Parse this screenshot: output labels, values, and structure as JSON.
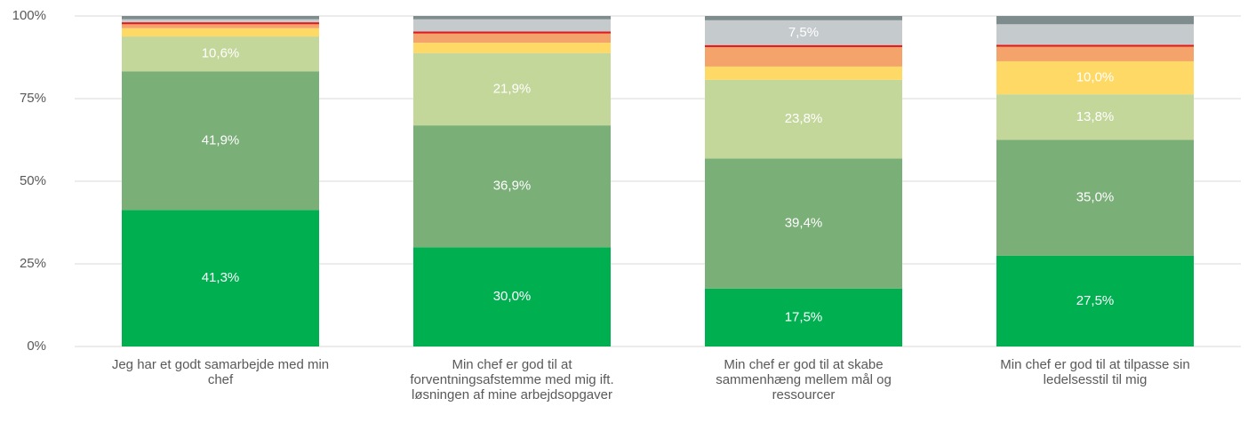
{
  "chart_data": {
    "type": "bar",
    "stacked": true,
    "categories": [
      "Jeg har et godt samarbejde med min chef",
      "Min chef er god til at forventningsafstemme med mig ift. løsningen af mine arbejdsopgaver",
      "Min chef er god til at skabe sammenhæng mellem mål og ressourcer",
      "Min chef er god til at tilpasse sin ledelsesstil til mig"
    ],
    "series": [
      {
        "color": "#00b050",
        "values": [
          41.3,
          30.0,
          17.5,
          27.5
        ],
        "value_labels": [
          "41,3%",
          "30,0%",
          "17,5%",
          "27,5%"
        ]
      },
      {
        "color": "#7aaf78",
        "values": [
          41.9,
          36.9,
          39.4,
          35.0
        ],
        "value_labels": [
          "41,9%",
          "36,9%",
          "39,4%",
          "35,0%"
        ]
      },
      {
        "color": "#c4d79b",
        "values": [
          10.6,
          21.9,
          23.8,
          13.8
        ],
        "value_labels": [
          "10,6%",
          "21,9%",
          "23,8%",
          "13,8%"
        ]
      },
      {
        "color": "#ffd966",
        "values": [
          2.5,
          3.1,
          4.0,
          10.0
        ],
        "value_labels": [
          null,
          null,
          null,
          "10,0%"
        ]
      },
      {
        "color": "#f4a46a",
        "values": [
          1.2,
          2.8,
          5.9,
          4.4
        ]
      },
      {
        "color": "#e31a1c",
        "values": [
          0.6,
          0.6,
          0.6,
          0.6
        ]
      },
      {
        "color": "#c5cbcd",
        "values": [
          0.9,
          3.7,
          7.5,
          6.2
        ],
        "value_labels": [
          null,
          null,
          "7,5%",
          null
        ]
      },
      {
        "color": "#7f8c8d",
        "values": [
          1.0,
          1.0,
          1.3,
          2.5
        ]
      }
    ],
    "ylim": [
      0,
      100
    ],
    "yticks": [
      {
        "value": 0,
        "label": "0%"
      },
      {
        "value": 25,
        "label": "25%"
      },
      {
        "value": 50,
        "label": "50%"
      },
      {
        "value": 75,
        "label": "75%"
      },
      {
        "value": 100,
        "label": "100%"
      }
    ],
    "grid": true
  }
}
